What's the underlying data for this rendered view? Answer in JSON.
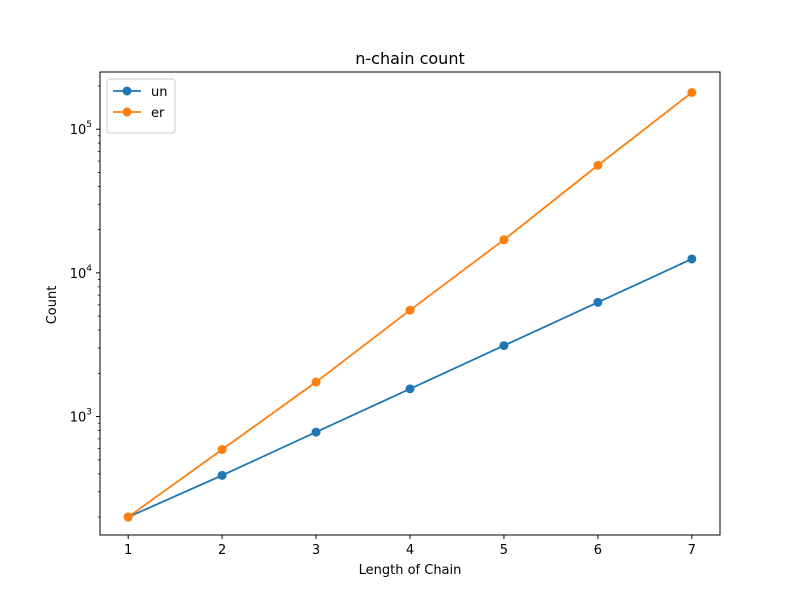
{
  "chart_data": {
    "type": "line",
    "title": "n-chain count",
    "xlabel": "Length of Chain",
    "ylabel": "Count",
    "yscale": "log",
    "x": [
      1,
      2,
      3,
      4,
      5,
      6,
      7
    ],
    "xlim": [
      0.7,
      7.3
    ],
    "ylim": [
      150,
      250000
    ],
    "x_ticks": [
      "1",
      "2",
      "3",
      "4",
      "5",
      "6",
      "7"
    ],
    "y_ticks": [
      {
        "value": 1000,
        "base": "10",
        "exp": "3"
      },
      {
        "value": 10000,
        "base": "10",
        "exp": "4"
      },
      {
        "value": 100000,
        "base": "10",
        "exp": "5"
      }
    ],
    "grid": false,
    "legend_position": "top-left",
    "series": [
      {
        "name": "un",
        "color": "#1f77b4",
        "marker": "circle",
        "values": [
          200,
          390,
          780,
          1560,
          3120,
          6240,
          12500
        ]
      },
      {
        "name": "er",
        "color": "#ff7f0e",
        "marker": "circle",
        "values": [
          200,
          590,
          1740,
          5500,
          17000,
          56000,
          180000
        ]
      }
    ]
  }
}
